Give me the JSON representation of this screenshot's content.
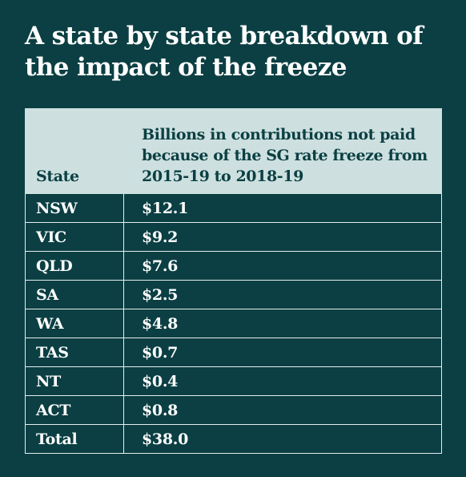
{
  "chart_data": {
    "type": "table",
    "title": "A state by state breakdown of the impact of the freeze",
    "columns": [
      "State",
      "Billions in contributions not paid because of the SG rate freeze from 2015-19 to 2018-19"
    ],
    "rows": [
      {
        "state": "NSW",
        "value": "$12.1"
      },
      {
        "state": "VIC",
        "value": "$9.2"
      },
      {
        "state": "QLD",
        "value": "$7.6"
      },
      {
        "state": "SA",
        "value": "$2.5"
      },
      {
        "state": "WA",
        "value": "$4.8"
      },
      {
        "state": "TAS",
        "value": "$0.7"
      },
      {
        "state": "NT",
        "value": "$0.4"
      },
      {
        "state": "ACT",
        "value": "$0.8"
      },
      {
        "state": "Total",
        "value": "$38.0"
      }
    ]
  },
  "colors": {
    "background": "#0b3f43",
    "header_fill": "#cde0df",
    "header_text": "#0b3f43",
    "body_text": "#ffffff",
    "grid_line": "#e6eeee"
  }
}
